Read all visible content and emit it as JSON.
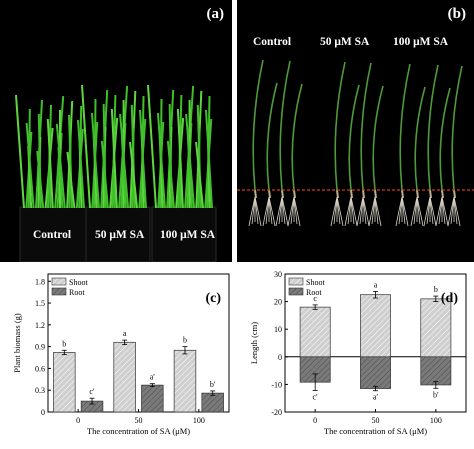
{
  "panel_a": {
    "letter": "(a)",
    "labels": [
      "Control",
      "50 μM SA",
      "100 μM SA"
    ]
  },
  "panel_b": {
    "letter": "(b)",
    "labels": [
      "Control",
      "50 μM SA",
      "100 μM SA"
    ]
  },
  "colors": {
    "photo_bg": "#000000",
    "shoot_fill": "#cfcfcf",
    "root_fill": "#7a7a7a",
    "leaf_green": "#3fbf2a",
    "red_dashed_line": "#d23a1a"
  },
  "chart_data": [
    {
      "panel": "(c)",
      "type": "bar",
      "ylabel": "Plant biomass (g)",
      "xlabel": "The concentration of SA (μM)",
      "categories": [
        "0",
        "50",
        "100"
      ],
      "ylim": [
        0,
        1.9
      ],
      "yticks": [
        "0",
        "0.3",
        "0.6",
        "0.9",
        "1.2",
        "1.5",
        "1.8"
      ],
      "legend": {
        "placement": "top-left",
        "entries": [
          "Shoot",
          "Root"
        ]
      },
      "series": [
        {
          "name": "Shoot",
          "values": [
            0.82,
            0.96,
            0.85
          ],
          "errors": [
            0.03,
            0.03,
            0.05
          ],
          "letters": [
            "b",
            "a",
            "b"
          ]
        },
        {
          "name": "Root",
          "values": [
            0.15,
            0.37,
            0.26
          ],
          "errors": [
            0.04,
            0.02,
            0.03
          ],
          "letters": [
            "c′",
            "a′",
            "b′"
          ]
        }
      ]
    },
    {
      "panel": "(d)",
      "type": "bar",
      "ylabel": "Length (cm)",
      "xlabel": "The concentration of SA (μM)",
      "categories": [
        "0",
        "50",
        "100"
      ],
      "ylim": [
        -20,
        30
      ],
      "yticks": [
        "-20",
        "-10",
        "0",
        "10",
        "20",
        "30"
      ],
      "legend": {
        "placement": "top-left",
        "entries": [
          "Shoot",
          "Root"
        ]
      },
      "series": [
        {
          "name": "Shoot",
          "values": [
            18,
            22.5,
            21
          ],
          "errors": [
            0.8,
            1.2,
            1.0
          ],
          "letters": [
            "c",
            "a",
            "b"
          ]
        },
        {
          "name": "Root",
          "values": [
            -9.2,
            -11.5,
            -10.2
          ],
          "errors": [
            3.0,
            0.8,
            1.2
          ],
          "letters": [
            "c′",
            "a′",
            "b′"
          ]
        }
      ]
    }
  ]
}
